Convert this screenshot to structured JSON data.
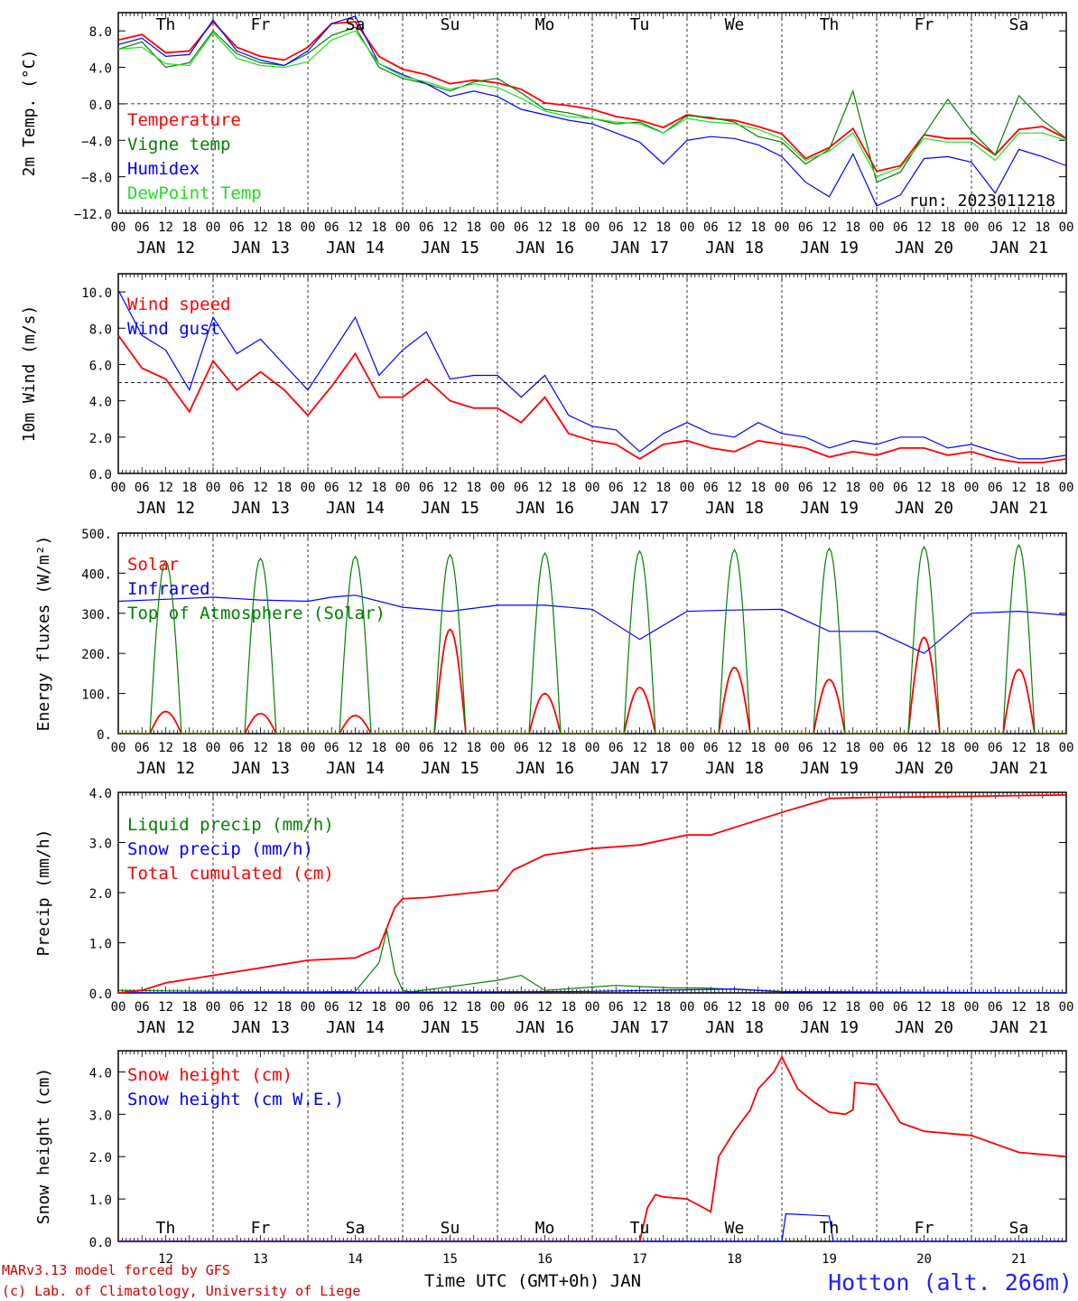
{
  "footer": {
    "model_line": "MARv3.13 model forced by GFS",
    "lab_line": "(c) Lab. of Climatology, University of Liege",
    "xlabel": "Time UTC (GMT+0h) JAN",
    "station": "Hotton (alt. 266m)"
  },
  "run_label": "run: 2023011218",
  "days": {
    "names": [
      "Th",
      "Fr",
      "Sa",
      "Su",
      "Mo",
      "Tu",
      "We",
      "Th",
      "Fr",
      "Sa"
    ],
    "weekend_flags": [
      false,
      false,
      true,
      true,
      false,
      false,
      false,
      false,
      false,
      true
    ],
    "dates": [
      "JAN 12",
      "JAN 13",
      "JAN 14",
      "JAN 15",
      "JAN 16",
      "JAN 17",
      "JAN 18",
      "JAN 19",
      "JAN 20",
      "JAN 21"
    ],
    "day_numbers": [
      "12",
      "13",
      "14",
      "15",
      "16",
      "17",
      "18",
      "19",
      "20",
      "21"
    ],
    "hour_ticks": [
      "00",
      "06",
      "12",
      "18"
    ],
    "final_tick": "00"
  },
  "colors": {
    "red": "#ff0000",
    "green": "#008000",
    "blue": "#0000ff",
    "lightgreen": "#22dd22"
  },
  "chart_data": [
    {
      "type": "line",
      "ylabel": "2m Temp. (°C)",
      "ylim": [
        -12,
        10
      ],
      "yticks": [
        -12,
        -8,
        -4,
        0,
        4,
        8
      ],
      "ytick_labels": [
        "−12.0",
        "−8.0",
        "−4.0",
        "0.0",
        "4.0",
        "8.0"
      ],
      "dashed_hline": 0,
      "x_unit": "hours since JAN 12 00 UTC",
      "series": [
        {
          "name": "Temperature",
          "color": "red",
          "x": [
            0,
            6,
            12,
            18,
            24,
            30,
            36,
            42,
            48,
            54,
            60,
            66,
            72,
            78,
            84,
            90,
            96,
            102,
            108,
            114,
            120,
            126,
            132,
            138,
            144,
            150,
            156,
            162,
            168,
            174,
            180,
            186,
            192,
            198,
            204,
            210,
            216,
            222,
            228,
            234,
            240
          ],
          "y": [
            7,
            7.6,
            5.6,
            5.8,
            9,
            6.2,
            5.2,
            4.8,
            6.2,
            8.8,
            9,
            5.2,
            3.8,
            3.2,
            2.2,
            2.6,
            2.3,
            1.6,
            0.1,
            -0.2,
            -0.6,
            -1.4,
            -1.8,
            -2.6,
            -1.2,
            -1.6,
            -1.8,
            -2.5,
            -3.3,
            -6,
            -4.8,
            -2.7,
            -7.4,
            -6.8,
            -3.4,
            -3.8,
            -3.8,
            -5.6,
            -2.8,
            -2.5,
            -3.8
          ]
        },
        {
          "name": "Vigne temp",
          "color": "green",
          "x": [
            0,
            6,
            12,
            18,
            24,
            30,
            36,
            42,
            48,
            54,
            60,
            66,
            72,
            78,
            84,
            90,
            96,
            102,
            108,
            114,
            120,
            126,
            132,
            138,
            144,
            150,
            156,
            162,
            168,
            174,
            180,
            186,
            192,
            198,
            204,
            210,
            216,
            222,
            228,
            234,
            240
          ],
          "y": [
            6,
            6.8,
            4,
            4.5,
            8,
            5.5,
            4.5,
            4.2,
            5.5,
            7.5,
            8.4,
            4,
            2.8,
            2.2,
            1.4,
            2.4,
            2.8,
            1.2,
            -0.6,
            -1,
            -1.6,
            -2.2,
            -2,
            -3.2,
            -1.3,
            -1.5,
            -2,
            -3.6,
            -4.2,
            -6.6,
            -5,
            1.4,
            -8.6,
            -7.5,
            -3.4,
            0.5,
            -3,
            -5.6,
            0.9,
            -1.8,
            -3.8
          ]
        },
        {
          "name": "Humidex",
          "color": "blue",
          "x": [
            0,
            6,
            12,
            18,
            24,
            30,
            36,
            42,
            48,
            54,
            60,
            66,
            72,
            78,
            84,
            90,
            96,
            102,
            108,
            114,
            120,
            126,
            132,
            138,
            144,
            150,
            156,
            162,
            168,
            174,
            180,
            186,
            192,
            198,
            204,
            210,
            216,
            222,
            228,
            234,
            240
          ],
          "y": [
            6.5,
            7.2,
            5.2,
            5.4,
            9.2,
            5.8,
            4.8,
            4.2,
            5.8,
            8.8,
            9.6,
            4.4,
            3.2,
            2.2,
            0.8,
            1.4,
            0.8,
            -0.6,
            -1.2,
            -1.8,
            -2.2,
            -3.2,
            -4.2,
            -6.6,
            -4,
            -3.6,
            -3.8,
            -4.5,
            -5.8,
            -8.6,
            -10.2,
            -5.5,
            -11.2,
            -10,
            -6,
            -5.8,
            -6.4,
            -9.8,
            -5,
            -5.8,
            -6.8
          ]
        },
        {
          "name": "DewPoint Temp",
          "color": "lightgreen",
          "x": [
            0,
            6,
            12,
            18,
            24,
            30,
            36,
            42,
            48,
            54,
            60,
            66,
            72,
            78,
            84,
            90,
            96,
            102,
            108,
            114,
            120,
            126,
            132,
            138,
            144,
            150,
            156,
            162,
            168,
            174,
            180,
            186,
            192,
            198,
            204,
            210,
            216,
            222,
            228,
            234,
            240
          ],
          "y": [
            6,
            6.2,
            4.4,
            4.2,
            7.8,
            5,
            4.2,
            4,
            4.6,
            7,
            8,
            4.4,
            3,
            2.4,
            1.6,
            2.2,
            1.8,
            0.6,
            -0.8,
            -1.4,
            -1.6,
            -2,
            -2.2,
            -3.2,
            -1.6,
            -2,
            -2.2,
            -2.8,
            -3.8,
            -6.2,
            -5.2,
            -3.2,
            -8,
            -7,
            -3.8,
            -4.2,
            -4.2,
            -6.2,
            -3.2,
            -3.2,
            -4
          ]
        }
      ]
    },
    {
      "type": "line",
      "ylabel": "10m Wind (m/s)",
      "ylim": [
        0,
        11
      ],
      "yticks": [
        0,
        2,
        4,
        6,
        8,
        10
      ],
      "ytick_labels": [
        "0.0",
        "2.0",
        "4.0",
        "6.0",
        "8.0",
        "10.0"
      ],
      "dashed_hline": 5,
      "series": [
        {
          "name": "Wind speed",
          "color": "red",
          "x": [
            0,
            6,
            12,
            18,
            24,
            30,
            36,
            42,
            48,
            54,
            60,
            66,
            72,
            78,
            84,
            90,
            96,
            102,
            108,
            114,
            120,
            126,
            132,
            138,
            144,
            150,
            156,
            162,
            168,
            174,
            180,
            186,
            192,
            198,
            204,
            210,
            216,
            222,
            228,
            234,
            240
          ],
          "y": [
            7.6,
            5.8,
            5.2,
            3.4,
            6.2,
            4.6,
            5.6,
            4.6,
            3.2,
            4.8,
            6.6,
            4.2,
            4.2,
            5.2,
            4,
            3.6,
            3.6,
            2.8,
            4.2,
            2.2,
            1.8,
            1.6,
            0.8,
            1.6,
            1.8,
            1.4,
            1.2,
            1.8,
            1.6,
            1.4,
            0.9,
            1.2,
            1,
            1.4,
            1.4,
            1,
            1.2,
            0.8,
            0.6,
            0.6,
            0.8
          ]
        },
        {
          "name": "Wind gust",
          "color": "blue",
          "x": [
            0,
            6,
            12,
            18,
            24,
            30,
            36,
            42,
            48,
            54,
            60,
            66,
            72,
            78,
            84,
            90,
            96,
            102,
            108,
            114,
            120,
            126,
            132,
            138,
            144,
            150,
            156,
            162,
            168,
            174,
            180,
            186,
            192,
            198,
            204,
            210,
            216,
            222,
            228,
            234,
            240
          ],
          "y": [
            10.1,
            7.6,
            6.8,
            4.6,
            8.6,
            6.6,
            7.4,
            6,
            4.6,
            6.6,
            8.6,
            5.4,
            6.8,
            7.8,
            5.2,
            5.4,
            5.4,
            4.2,
            5.4,
            3.2,
            2.6,
            2.4,
            1.2,
            2.2,
            2.8,
            2.2,
            2,
            2.8,
            2.2,
            2,
            1.4,
            1.8,
            1.6,
            2,
            2,
            1.4,
            1.6,
            1.2,
            0.8,
            0.8,
            1
          ]
        }
      ]
    },
    {
      "type": "line",
      "ylabel": "Energy fluxes (W/m²)",
      "ylim": [
        0,
        500
      ],
      "yticks": [
        0,
        100,
        200,
        300,
        400,
        500
      ],
      "ytick_labels": [
        "0.",
        "100.",
        "200.",
        "300.",
        "400.",
        "500."
      ],
      "series": [
        {
          "name": "Solar",
          "color": "red",
          "daily_peak_hour": 12,
          "daily_halfwidth_h": 4,
          "peaks": [
            55,
            50,
            45,
            260,
            100,
            115,
            165,
            135,
            240,
            160
          ]
        },
        {
          "name": "Infrared",
          "color": "blue",
          "x": [
            0,
            12,
            24,
            36,
            48,
            54,
            60,
            72,
            84,
            96,
            108,
            120,
            132,
            144,
            156,
            168,
            180,
            192,
            204,
            216,
            228,
            240
          ],
          "y": [
            330,
            335,
            340,
            333,
            330,
            340,
            345,
            315,
            305,
            320,
            320,
            310,
            235,
            305,
            308,
            310,
            255,
            255,
            200,
            300,
            305,
            295
          ]
        },
        {
          "name": "Top of Atmosphere (Solar)",
          "color": "green",
          "daily_peak_hour": 12,
          "daily_halfwidth_h": 4,
          "peaks": [
            430,
            437,
            442,
            446,
            450,
            455,
            458,
            462,
            466,
            470
          ]
        }
      ]
    },
    {
      "type": "line",
      "ylabel": "Precip (mm/h)",
      "ylim": [
        0,
        4
      ],
      "yticks": [
        0,
        1,
        2,
        3,
        4
      ],
      "ytick_labels": [
        "0.0",
        "1.0",
        "2.0",
        "3.0",
        "4.0"
      ],
      "series": [
        {
          "name": "Liquid precip (mm/h)",
          "color": "green",
          "x": [
            0,
            24,
            48,
            60,
            66,
            68,
            70,
            72,
            74,
            96,
            102,
            108,
            126,
            140,
            148,
            168,
            240
          ],
          "y": [
            0.05,
            0.03,
            0.02,
            0.03,
            0.6,
            1.25,
            0.4,
            0.05,
            0.02,
            0.25,
            0.35,
            0.05,
            0.15,
            0.1,
            0.1,
            0.03,
            0
          ]
        },
        {
          "name": "Snow precip (mm/h)",
          "color": "blue",
          "x": [
            0,
            96,
            120,
            156,
            168,
            240
          ],
          "y": [
            0,
            0.02,
            0.03,
            0.08,
            0.02,
            0
          ]
        },
        {
          "name": "Total cumulated (cm)",
          "color": "red",
          "x": [
            0,
            6,
            12,
            24,
            36,
            48,
            60,
            66,
            70,
            72,
            78,
            96,
            100,
            108,
            120,
            132,
            144,
            150,
            168,
            180,
            192,
            204,
            216,
            240
          ],
          "y": [
            0,
            0.05,
            0.2,
            0.35,
            0.5,
            0.65,
            0.7,
            0.9,
            1.7,
            1.88,
            1.9,
            2.05,
            2.45,
            2.75,
            2.88,
            2.95,
            3.15,
            3.15,
            3.6,
            3.88,
            3.9,
            3.91,
            3.92,
            3.95
          ]
        }
      ]
    },
    {
      "type": "line",
      "ylabel": "Snow height (cm)",
      "ylim": [
        0,
        4.5
      ],
      "yticks": [
        0,
        1,
        2,
        3,
        4
      ],
      "ytick_labels": [
        "0.0",
        "1.0",
        "2.0",
        "3.0",
        "4.0"
      ],
      "series": [
        {
          "name": "Snow height (cm)",
          "color": "red",
          "x": [
            0,
            132,
            134,
            136,
            138,
            144,
            150,
            152,
            156,
            160,
            162,
            166,
            168,
            172,
            176,
            180,
            184,
            186,
            186.5,
            192,
            198,
            204,
            216,
            228,
            240
          ],
          "y": [
            0,
            0,
            0.8,
            1.1,
            1.05,
            1.0,
            0.7,
            2.0,
            2.6,
            3.1,
            3.6,
            4.0,
            4.35,
            3.6,
            3.3,
            3.05,
            3.0,
            3.1,
            3.75,
            3.7,
            2.8,
            2.6,
            2.5,
            2.1,
            2.0
          ]
        },
        {
          "name": "Snow height (cm W.E.)",
          "color": "blue",
          "x": [
            0,
            168,
            169,
            180,
            181,
            240
          ],
          "y": [
            0,
            0,
            0.65,
            0.6,
            0,
            0
          ]
        }
      ]
    }
  ]
}
